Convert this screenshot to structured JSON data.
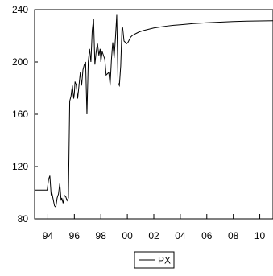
{
  "chart_data": {
    "type": "line",
    "title": "",
    "xlabel": "",
    "ylabel": "",
    "xlim": [
      1993.0,
      2011.0
    ],
    "ylim": [
      80,
      240
    ],
    "x_ticks": [
      {
        "value": 1994,
        "label": "94"
      },
      {
        "value": 1996,
        "label": "96"
      },
      {
        "value": 1998,
        "label": "98"
      },
      {
        "value": 2000,
        "label": "00"
      },
      {
        "value": 2002,
        "label": "02"
      },
      {
        "value": 2004,
        "label": "04"
      },
      {
        "value": 2006,
        "label": "06"
      },
      {
        "value": 2008,
        "label": "08"
      },
      {
        "value": 2010,
        "label": "10"
      }
    ],
    "y_ticks": [
      {
        "value": 80,
        "label": "80"
      },
      {
        "value": 120,
        "label": "120"
      },
      {
        "value": 160,
        "label": "160"
      },
      {
        "value": 200,
        "label": "200"
      },
      {
        "value": 240,
        "label": "240"
      }
    ],
    "grid": false,
    "legend_position": "bottom-center",
    "series": [
      {
        "name": "PX",
        "color": "#000000",
        "x": [
          1993.0,
          1993.25,
          1993.5,
          1993.75,
          1993.95,
          1994.05,
          1994.15,
          1994.25,
          1994.3,
          1994.4,
          1994.5,
          1994.6,
          1994.7,
          1994.8,
          1994.9,
          1995.0,
          1995.05,
          1995.15,
          1995.25,
          1995.35,
          1995.45,
          1995.55,
          1995.65,
          1995.75,
          1995.85,
          1995.95,
          1996.0,
          1996.05,
          1996.15,
          1996.25,
          1996.35,
          1996.45,
          1996.55,
          1996.65,
          1996.75,
          1996.85,
          1996.95,
          1997.05,
          1997.15,
          1997.25,
          1997.35,
          1997.45,
          1997.55,
          1997.65,
          1997.75,
          1997.85,
          1997.95,
          1998.0,
          1998.1,
          1998.2,
          1998.3,
          1998.4,
          1998.5,
          1998.6,
          1998.7,
          1998.8,
          1998.9,
          1999.0,
          1999.1,
          1999.2,
          1999.3,
          1999.4,
          1999.5,
          1999.6,
          1999.65,
          1999.75,
          1999.85,
          1999.95,
          2000.05,
          2000.15,
          2000.25,
          2000.35,
          2000.5,
          2000.7,
          2000.9,
          2001.2,
          2001.6,
          2002.0,
          2002.5,
          2003.0,
          2003.5,
          2004.0,
          2005.0,
          2006.0,
          2007.0,
          2008.0,
          2009.0,
          2010.0,
          2011.0
        ],
        "values": [
          102,
          102,
          102,
          102,
          102,
          110,
          113,
          98,
          100,
          95,
          90,
          89,
          96,
          99,
          107,
          94,
          96,
          92,
          98,
          97,
          94,
          96,
          170,
          174,
          182,
          172,
          176,
          185,
          182,
          172,
          182,
          192,
          182,
          194,
          198,
          200,
          160,
          200,
          210,
          200,
          224,
          233,
          198,
          208,
          214,
          205,
          210,
          200,
          208,
          205,
          202,
          190,
          191,
          192,
          182,
          202,
          215,
          203,
          218,
          236,
          184,
          182,
          197,
          227,
          226,
          216,
          215,
          214,
          215,
          217,
          219,
          220,
          221,
          222,
          223,
          224,
          225,
          226,
          226.8,
          227.5,
          228.1,
          228.5,
          229.4,
          230.0,
          230.5,
          230.9,
          231.2,
          231.4,
          231.5
        ]
      }
    ]
  },
  "legend": {
    "label": "PX"
  }
}
